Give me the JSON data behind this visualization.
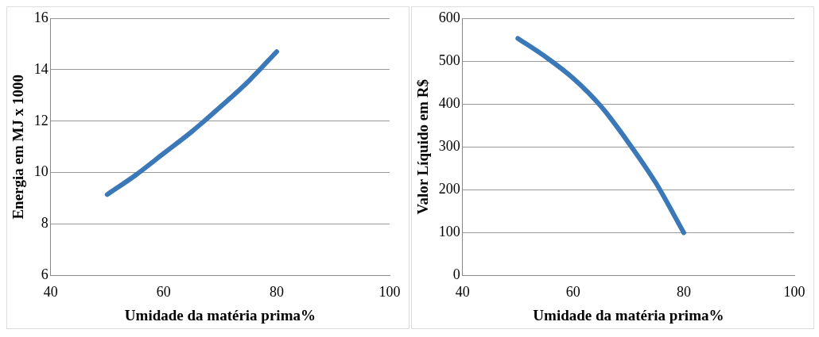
{
  "chart_data": [
    {
      "type": "line",
      "xlabel": "Umidade da matéria prima%",
      "ylabel": "Energia em MJ x 1000",
      "x": [
        50,
        55,
        60,
        65,
        70,
        75,
        80
      ],
      "series": [
        {
          "color": "#3a78b8",
          "values": [
            9.15,
            9.9,
            10.75,
            11.6,
            12.55,
            13.55,
            14.7
          ]
        }
      ],
      "xlim": [
        40,
        100
      ],
      "xticks": [
        40,
        60,
        80,
        100
      ],
      "ylim": [
        6,
        16
      ],
      "yticks": [
        6,
        8,
        10,
        12,
        14,
        16
      ],
      "grid": "y",
      "marker": "none",
      "line_style": "solid"
    },
    {
      "type": "line",
      "xlabel": "Umidade da matéria prima%",
      "ylabel": "Valor Líquido em R$",
      "x": [
        50,
        55,
        60,
        65,
        70,
        75,
        80
      ],
      "series": [
        {
          "color": "#3a78b8",
          "values": [
            553,
            510,
            460,
            395,
            310,
            215,
            100
          ]
        }
      ],
      "xlim": [
        40,
        100
      ],
      "xticks": [
        40,
        60,
        80,
        100
      ],
      "ylim": [
        0,
        600
      ],
      "yticks": [
        0,
        100,
        200,
        300,
        400,
        500,
        600
      ],
      "grid": "y",
      "marker": "none",
      "line_style": "solid"
    }
  ]
}
